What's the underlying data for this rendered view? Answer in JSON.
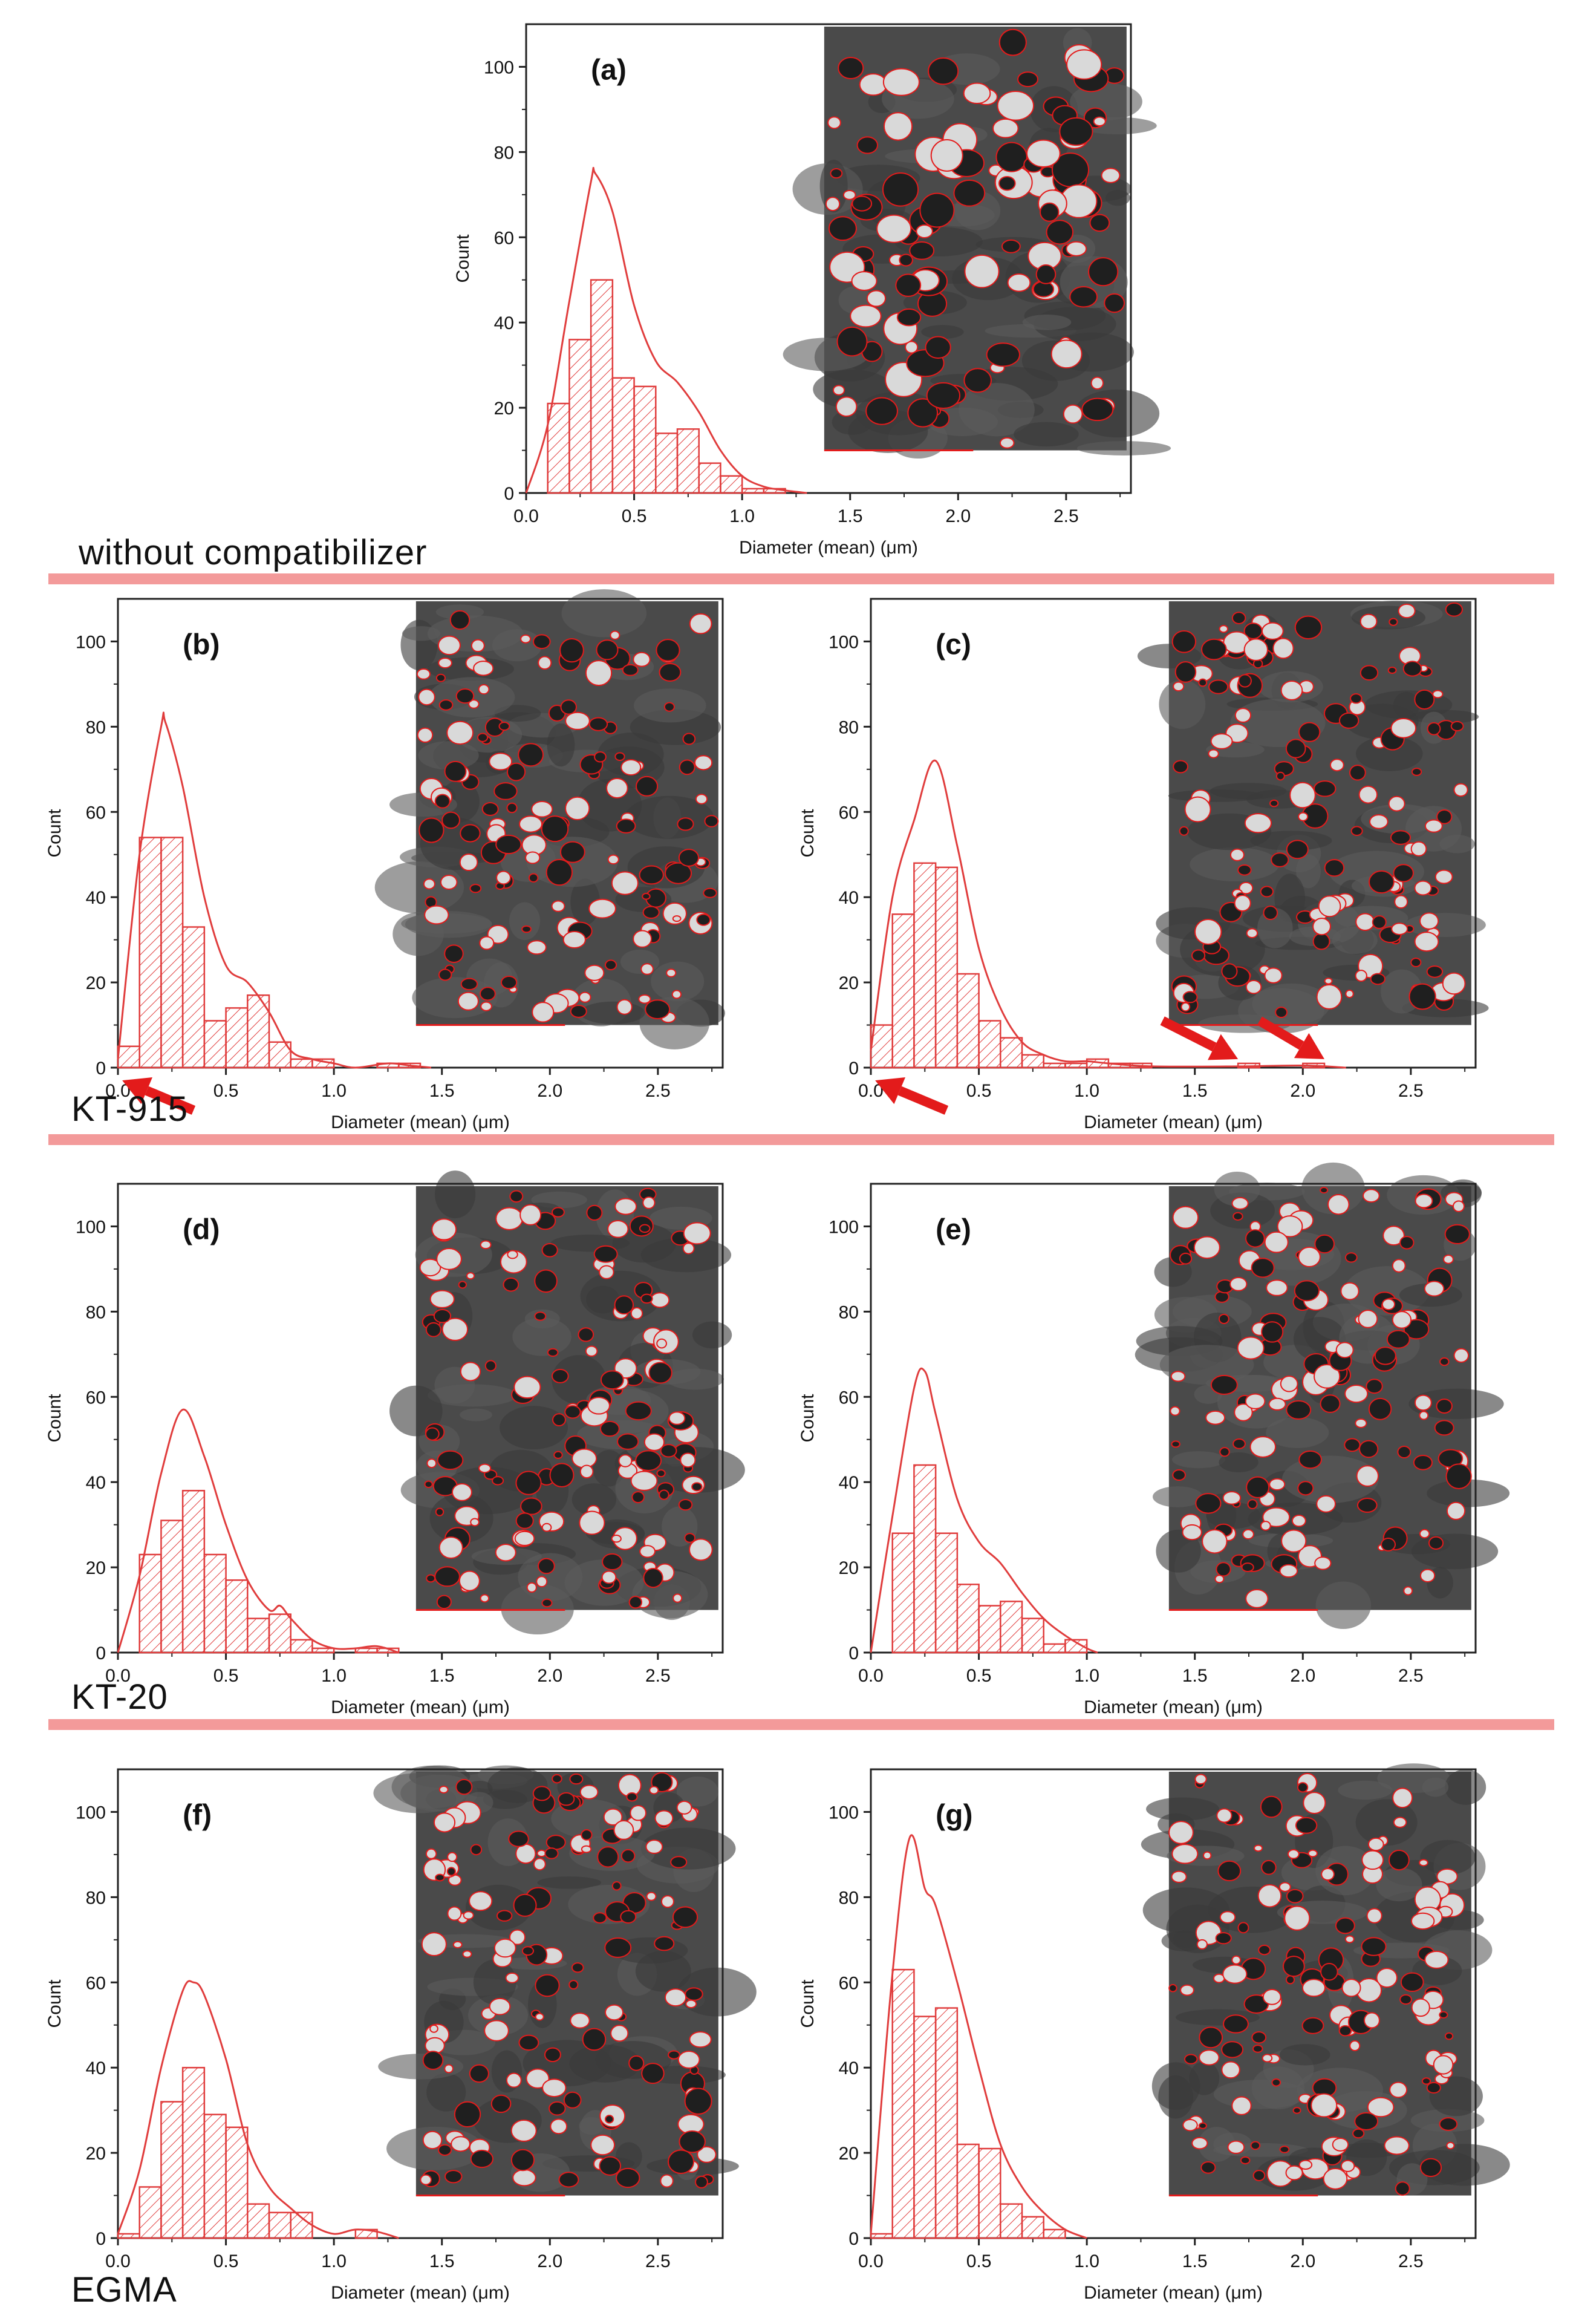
{
  "figure": {
    "groups": {
      "without": "without compatibilizer",
      "kt915": "KT-915",
      "kt20": "KT-20",
      "egma": "EGMA"
    },
    "colors": {
      "series": "#e03c3c",
      "divider": "#f39a9a",
      "axis": "#222222",
      "sem_outline": "#e31b1b"
    }
  },
  "chart_data": [
    {
      "id": "a",
      "type": "bar",
      "label": "(a)",
      "group": "without compatibilizer",
      "xlabel": "Diameter (mean) (μm)",
      "ylabel": "Count",
      "xlim": [
        0,
        2.8
      ],
      "ylim": [
        0,
        110
      ],
      "xticks": [
        0.0,
        0.5,
        1.0,
        1.5,
        2.0,
        2.5
      ],
      "yticks": [
        0,
        20,
        40,
        60,
        80,
        100
      ],
      "bin_width": 0.1,
      "bins": [
        [
          0.1,
          21
        ],
        [
          0.2,
          36
        ],
        [
          0.3,
          50
        ],
        [
          0.4,
          27
        ],
        [
          0.5,
          25
        ],
        [
          0.6,
          14
        ],
        [
          0.7,
          15
        ],
        [
          0.8,
          7
        ],
        [
          0.9,
          4
        ],
        [
          1.0,
          1
        ],
        [
          1.1,
          1
        ]
      ],
      "curve": [
        [
          0,
          0
        ],
        [
          0.1,
          16
        ],
        [
          0.2,
          45
        ],
        [
          0.3,
          73
        ],
        [
          0.32,
          75
        ],
        [
          0.4,
          66
        ],
        [
          0.5,
          44
        ],
        [
          0.6,
          31
        ],
        [
          0.7,
          26
        ],
        [
          0.8,
          19
        ],
        [
          0.9,
          10
        ],
        [
          1.0,
          4
        ],
        [
          1.1,
          1.5
        ],
        [
          1.2,
          0.6
        ],
        [
          1.3,
          0
        ]
      ],
      "arrows": []
    },
    {
      "id": "b",
      "type": "bar",
      "label": "(b)",
      "group": "KT-915",
      "xlabel": "Diameter (mean) (μm)",
      "ylabel": "Count",
      "xlim": [
        0,
        2.8
      ],
      "ylim": [
        0,
        110
      ],
      "xticks": [
        0.0,
        0.5,
        1.0,
        1.5,
        2.0,
        2.5
      ],
      "yticks": [
        0,
        20,
        40,
        60,
        80,
        100
      ],
      "bin_width": 0.1,
      "bins": [
        [
          0.0,
          5
        ],
        [
          0.1,
          54
        ],
        [
          0.2,
          54
        ],
        [
          0.3,
          33
        ],
        [
          0.4,
          11
        ],
        [
          0.5,
          14
        ],
        [
          0.6,
          17
        ],
        [
          0.7,
          6
        ],
        [
          0.8,
          2
        ],
        [
          0.9,
          2
        ],
        [
          1.2,
          1
        ],
        [
          1.3,
          1
        ]
      ],
      "curve": [
        [
          0,
          2
        ],
        [
          0.1,
          50
        ],
        [
          0.2,
          80
        ],
        [
          0.22,
          81
        ],
        [
          0.3,
          66
        ],
        [
          0.4,
          40
        ],
        [
          0.5,
          24
        ],
        [
          0.6,
          20
        ],
        [
          0.7,
          13
        ],
        [
          0.8,
          4
        ],
        [
          0.9,
          2
        ],
        [
          1.0,
          1
        ],
        [
          1.1,
          0
        ],
        [
          1.25,
          1
        ],
        [
          1.35,
          0.5
        ],
        [
          1.45,
          0
        ]
      ],
      "arrows": [
        [
          0.35,
          -10,
          0.02,
          -3
        ]
      ]
    },
    {
      "id": "c",
      "type": "bar",
      "label": "(c)",
      "group": "KT-915",
      "xlabel": "Diameter (mean) (μm)",
      "ylabel": "Count",
      "xlim": [
        0,
        2.8
      ],
      "ylim": [
        0,
        110
      ],
      "xticks": [
        0.0,
        0.5,
        1.0,
        1.5,
        2.0,
        2.5
      ],
      "yticks": [
        0,
        20,
        40,
        60,
        80,
        100
      ],
      "bin_width": 0.1,
      "bins": [
        [
          0.0,
          10
        ],
        [
          0.1,
          36
        ],
        [
          0.2,
          48
        ],
        [
          0.3,
          47
        ],
        [
          0.4,
          22
        ],
        [
          0.5,
          11
        ],
        [
          0.6,
          7
        ],
        [
          0.7,
          3
        ],
        [
          0.8,
          1
        ],
        [
          0.9,
          1
        ],
        [
          1.0,
          2
        ],
        [
          1.1,
          1
        ],
        [
          1.2,
          1
        ],
        [
          1.7,
          1
        ],
        [
          2.0,
          1
        ]
      ],
      "curve": [
        [
          0,
          4
        ],
        [
          0.1,
          40
        ],
        [
          0.2,
          58
        ],
        [
          0.3,
          72
        ],
        [
          0.4,
          52
        ],
        [
          0.5,
          28
        ],
        [
          0.6,
          14
        ],
        [
          0.7,
          6
        ],
        [
          0.8,
          3
        ],
        [
          0.9,
          1.5
        ],
        [
          1.0,
          1.5
        ],
        [
          1.1,
          1
        ],
        [
          1.3,
          0.3
        ],
        [
          1.7,
          0.3
        ],
        [
          2.0,
          0.5
        ],
        [
          2.2,
          0
        ]
      ],
      "arrows": [
        [
          0.35,
          -10,
          0.02,
          -3
        ],
        [
          1.35,
          11,
          1.7,
          2
        ],
        [
          1.8,
          11,
          2.1,
          2
        ]
      ]
    },
    {
      "id": "d",
      "type": "bar",
      "label": "(d)",
      "group": "KT-20",
      "xlabel": "Diameter (mean) (μm)",
      "ylabel": "Count",
      "xlim": [
        0,
        2.8
      ],
      "ylim": [
        0,
        110
      ],
      "xticks": [
        0.0,
        0.5,
        1.0,
        1.5,
        2.0,
        2.5
      ],
      "yticks": [
        0,
        20,
        40,
        60,
        80,
        100
      ],
      "bin_width": 0.1,
      "bins": [
        [
          0.1,
          23
        ],
        [
          0.2,
          31
        ],
        [
          0.3,
          38
        ],
        [
          0.4,
          23
        ],
        [
          0.5,
          17
        ],
        [
          0.6,
          8
        ],
        [
          0.7,
          9
        ],
        [
          0.8,
          3
        ],
        [
          0.9,
          1
        ],
        [
          1.1,
          1
        ],
        [
          1.2,
          1
        ]
      ],
      "curve": [
        [
          0,
          0
        ],
        [
          0.1,
          18
        ],
        [
          0.2,
          42
        ],
        [
          0.3,
          57
        ],
        [
          0.4,
          46
        ],
        [
          0.5,
          30
        ],
        [
          0.6,
          17
        ],
        [
          0.7,
          10
        ],
        [
          0.75,
          11
        ],
        [
          0.8,
          8
        ],
        [
          0.9,
          3
        ],
        [
          1.0,
          1
        ],
        [
          1.1,
          1
        ],
        [
          1.2,
          1.5
        ],
        [
          1.3,
          0
        ]
      ],
      "arrows": []
    },
    {
      "id": "e",
      "type": "bar",
      "label": "(e)",
      "group": "KT-20",
      "xlabel": "Diameter (mean) (μm)",
      "ylabel": "Count",
      "xlim": [
        0,
        2.8
      ],
      "ylim": [
        0,
        110
      ],
      "xticks": [
        0.0,
        0.5,
        1.0,
        1.5,
        2.0,
        2.5
      ],
      "yticks": [
        0,
        20,
        40,
        60,
        80,
        100
      ],
      "bin_width": 0.1,
      "bins": [
        [
          0.1,
          28
        ],
        [
          0.2,
          44
        ],
        [
          0.3,
          28
        ],
        [
          0.4,
          16
        ],
        [
          0.5,
          11
        ],
        [
          0.6,
          12
        ],
        [
          0.7,
          8
        ],
        [
          0.8,
          2
        ],
        [
          0.9,
          3
        ]
      ],
      "curve": [
        [
          0,
          0
        ],
        [
          0.1,
          32
        ],
        [
          0.2,
          62
        ],
        [
          0.25,
          66
        ],
        [
          0.3,
          56
        ],
        [
          0.4,
          36
        ],
        [
          0.5,
          26
        ],
        [
          0.6,
          21
        ],
        [
          0.7,
          14
        ],
        [
          0.8,
          8
        ],
        [
          0.9,
          4
        ],
        [
          1.0,
          1
        ],
        [
          1.05,
          0
        ]
      ],
      "arrows": []
    },
    {
      "id": "f",
      "type": "bar",
      "label": "(f)",
      "group": "EGMA",
      "xlabel": "Diameter (mean) (μm)",
      "ylabel": "Count",
      "xlim": [
        0,
        2.8
      ],
      "ylim": [
        0,
        110
      ],
      "xticks": [
        0.0,
        0.5,
        1.0,
        1.5,
        2.0,
        2.5
      ],
      "yticks": [
        0,
        20,
        40,
        60,
        80,
        100
      ],
      "bin_width": 0.1,
      "bins": [
        [
          0.0,
          1
        ],
        [
          0.1,
          12
        ],
        [
          0.2,
          32
        ],
        [
          0.3,
          40
        ],
        [
          0.4,
          29
        ],
        [
          0.5,
          26
        ],
        [
          0.6,
          8
        ],
        [
          0.7,
          6
        ],
        [
          0.8,
          6
        ],
        [
          1.1,
          2
        ]
      ],
      "curve": [
        [
          0,
          1
        ],
        [
          0.1,
          16
        ],
        [
          0.2,
          40
        ],
        [
          0.3,
          58
        ],
        [
          0.35,
          60
        ],
        [
          0.4,
          57
        ],
        [
          0.5,
          42
        ],
        [
          0.6,
          22
        ],
        [
          0.7,
          12
        ],
        [
          0.8,
          7
        ],
        [
          0.9,
          3
        ],
        [
          1.0,
          1
        ],
        [
          1.1,
          2
        ],
        [
          1.2,
          1.5
        ],
        [
          1.3,
          0
        ]
      ],
      "arrows": []
    },
    {
      "id": "g",
      "type": "bar",
      "label": "(g)",
      "group": "EGMA",
      "xlabel": "Diameter (mean) (μm)",
      "ylabel": "Count",
      "xlim": [
        0,
        2.8
      ],
      "ylim": [
        0,
        110
      ],
      "xticks": [
        0.0,
        0.5,
        1.0,
        1.5,
        2.0,
        2.5
      ],
      "yticks": [
        0,
        20,
        40,
        60,
        80,
        100
      ],
      "bin_width": 0.1,
      "bins": [
        [
          0.0,
          1
        ],
        [
          0.1,
          63
        ],
        [
          0.2,
          52
        ],
        [
          0.3,
          54
        ],
        [
          0.4,
          22
        ],
        [
          0.5,
          21
        ],
        [
          0.6,
          8
        ],
        [
          0.7,
          5
        ],
        [
          0.8,
          2
        ]
      ],
      "curve": [
        [
          0,
          1
        ],
        [
          0.1,
          62
        ],
        [
          0.18,
          94
        ],
        [
          0.25,
          82
        ],
        [
          0.3,
          78
        ],
        [
          0.4,
          60
        ],
        [
          0.5,
          40
        ],
        [
          0.6,
          22
        ],
        [
          0.7,
          12
        ],
        [
          0.8,
          6
        ],
        [
          0.9,
          2
        ],
        [
          1.0,
          0
        ]
      ],
      "arrows": []
    }
  ]
}
